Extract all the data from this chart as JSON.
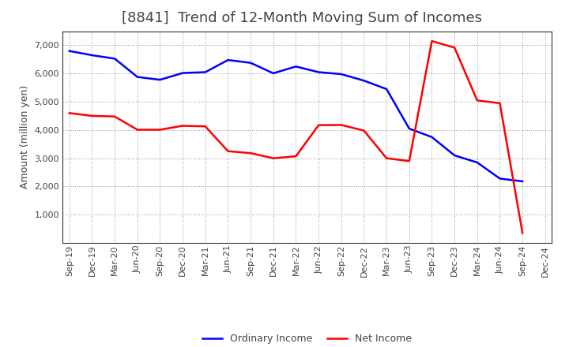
{
  "title": "[8841]  Trend of 12-Month Moving Sum of Incomes",
  "ylabel": "Amount (million yen)",
  "ylim": [
    0,
    7500
  ],
  "yticks": [
    1000,
    2000,
    3000,
    4000,
    5000,
    6000,
    7000
  ],
  "x_labels": [
    "Sep-19",
    "Dec-19",
    "Mar-20",
    "Jun-20",
    "Sep-20",
    "Dec-20",
    "Mar-21",
    "Jun-21",
    "Sep-21",
    "Dec-21",
    "Mar-22",
    "Jun-22",
    "Sep-22",
    "Dec-22",
    "Mar-23",
    "Jun-23",
    "Sep-23",
    "Dec-23",
    "Mar-24",
    "Jun-24",
    "Sep-24",
    "Dec-24"
  ],
  "ordinary_income": [
    6800,
    6650,
    6530,
    5880,
    5780,
    6020,
    6050,
    6480,
    6380,
    6010,
    6250,
    6050,
    5980,
    5750,
    5450,
    4050,
    3750,
    3100,
    2850,
    2280,
    2180,
    null
  ],
  "net_income": [
    4600,
    4500,
    4480,
    4010,
    4010,
    4150,
    4130,
    3250,
    3180,
    3000,
    3070,
    4170,
    4180,
    3980,
    3000,
    2900,
    7150,
    6920,
    5050,
    4950,
    350,
    null
  ],
  "ordinary_color": "#0000FF",
  "net_color": "#FF0000",
  "line_width": 1.8,
  "bg_color": "#FFFFFF",
  "plot_bg_color": "#FFFFFF",
  "grid_color": "#999999",
  "text_color": "#444444",
  "title_fontsize": 13,
  "axis_label_fontsize": 9,
  "tick_fontsize": 8,
  "legend_fontsize": 9,
  "spine_color": "#333333"
}
